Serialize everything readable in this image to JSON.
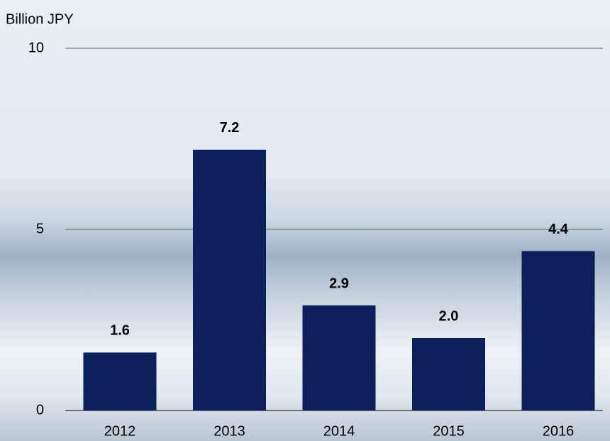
{
  "chart_data": {
    "type": "bar",
    "y_axis_label": "Billion JPY",
    "categories": [
      "2012",
      "2013",
      "2014",
      "2015",
      "2016"
    ],
    "values": [
      1.6,
      7.2,
      2.9,
      2.0,
      4.4
    ],
    "value_labels": [
      "1.6",
      "7.2",
      "2.9",
      "2.0",
      "4.4"
    ],
    "color": "#0c1f5a",
    "ylim": [
      0,
      10
    ],
    "yticks": [
      0,
      5,
      10
    ],
    "grid": true
  }
}
